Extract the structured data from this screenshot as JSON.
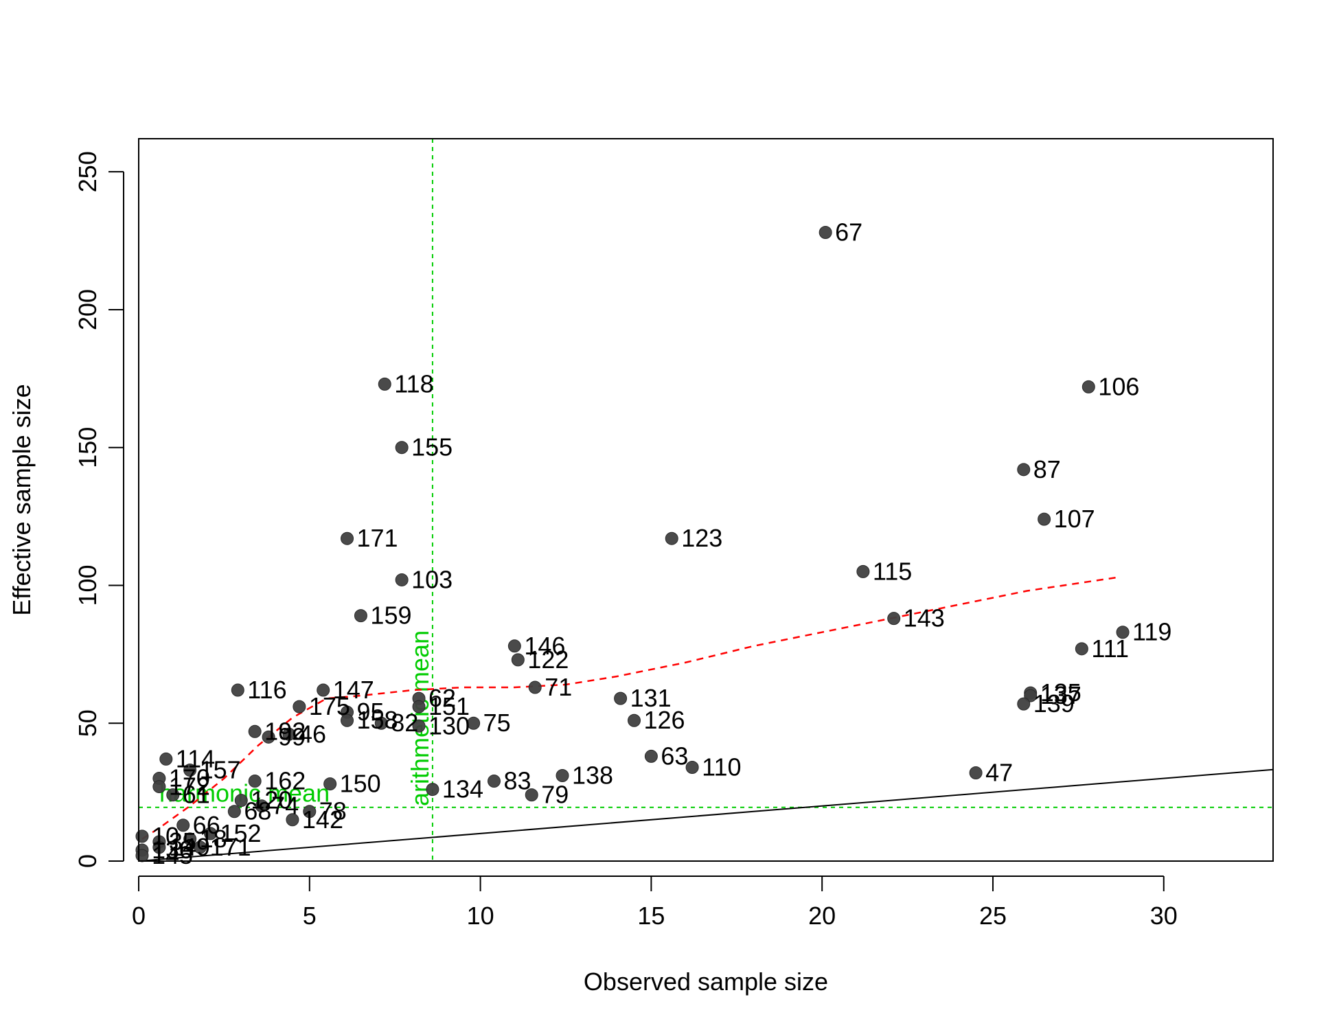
{
  "chart_data": {
    "type": "scatter",
    "xlabel": "Observed sample size",
    "ylabel": "Effective sample size",
    "xlim": [
      0,
      33.2
    ],
    "ylim": [
      0,
      262
    ],
    "xticks": [
      0,
      5,
      10,
      15,
      20,
      25,
      30
    ],
    "yticks": [
      0,
      50,
      100,
      150,
      200,
      250
    ],
    "grid": false,
    "point_color": "#404040",
    "points": [
      {
        "label": "67",
        "x": 20.1,
        "y": 228
      },
      {
        "label": "118",
        "x": 7.2,
        "y": 173
      },
      {
        "label": "106",
        "x": 27.8,
        "y": 172
      },
      {
        "label": "155",
        "x": 7.7,
        "y": 150
      },
      {
        "label": "87",
        "x": 25.9,
        "y": 142
      },
      {
        "label": "107",
        "x": 26.5,
        "y": 124
      },
      {
        "label": "171",
        "x": 6.1,
        "y": 117
      },
      {
        "label": "123",
        "x": 15.6,
        "y": 117
      },
      {
        "label": "115",
        "x": 21.2,
        "y": 105
      },
      {
        "label": "103",
        "x": 7.7,
        "y": 102
      },
      {
        "label": "159",
        "x": 6.5,
        "y": 89
      },
      {
        "label": "143",
        "x": 22.1,
        "y": 88
      },
      {
        "label": "119",
        "x": 28.8,
        "y": 83
      },
      {
        "label": "146",
        "x": 11.0,
        "y": 78
      },
      {
        "label": "111",
        "x": 27.6,
        "y": 77
      },
      {
        "label": "122",
        "x": 11.1,
        "y": 73
      },
      {
        "label": "71",
        "x": 11.6,
        "y": 63
      },
      {
        "label": "116",
        "x": 2.9,
        "y": 62
      },
      {
        "label": "147",
        "x": 5.4,
        "y": 62
      },
      {
        "label": "135",
        "x": 26.1,
        "y": 61
      },
      {
        "label": "137",
        "x": 26.1,
        "y": 60
      },
      {
        "label": "131",
        "x": 14.1,
        "y": 59
      },
      {
        "label": "62",
        "x": 8.2,
        "y": 59
      },
      {
        "label": "139",
        "x": 25.9,
        "y": 57
      },
      {
        "label": "175",
        "x": 4.7,
        "y": 56
      },
      {
        "label": "151",
        "x": 8.2,
        "y": 56
      },
      {
        "label": "95",
        "x": 6.1,
        "y": 54
      },
      {
        "label": "126",
        "x": 14.5,
        "y": 51
      },
      {
        "label": "158",
        "x": 6.1,
        "y": 51
      },
      {
        "label": "75",
        "x": 9.8,
        "y": 50
      },
      {
        "label": "82",
        "x": 7.1,
        "y": 50
      },
      {
        "label": "130",
        "x": 8.2,
        "y": 49
      },
      {
        "label": "192",
        "x": 3.4,
        "y": 47
      },
      {
        "label": "46",
        "x": 4.4,
        "y": 46
      },
      {
        "label": "99",
        "x": 3.8,
        "y": 45
      },
      {
        "label": "63",
        "x": 15.0,
        "y": 38
      },
      {
        "label": "114",
        "x": 0.8,
        "y": 37
      },
      {
        "label": "110",
        "x": 16.2,
        "y": 34
      },
      {
        "label": "157",
        "x": 1.5,
        "y": 33
      },
      {
        "label": "47",
        "x": 24.5,
        "y": 32
      },
      {
        "label": "138",
        "x": 12.4,
        "y": 31
      },
      {
        "label": "170",
        "x": 0.6,
        "y": 30
      },
      {
        "label": "162",
        "x": 3.4,
        "y": 29
      },
      {
        "label": "83",
        "x": 10.4,
        "y": 29
      },
      {
        "label": "150",
        "x": 5.6,
        "y": 28
      },
      {
        "label": "172",
        "x": 0.6,
        "y": 27
      },
      {
        "label": "134",
        "x": 8.6,
        "y": 26
      },
      {
        "label": "79",
        "x": 11.5,
        "y": 24
      },
      {
        "label": "61",
        "x": 1.0,
        "y": 24
      },
      {
        "label": "120",
        "x": 3.0,
        "y": 22
      },
      {
        "label": "74",
        "x": 3.6,
        "y": 20
      },
      {
        "label": "78",
        "x": 5.0,
        "y": 18
      },
      {
        "label": "68",
        "x": 2.8,
        "y": 18
      },
      {
        "label": "142",
        "x": 4.5,
        "y": 15
      },
      {
        "label": "66",
        "x": 1.3,
        "y": 13
      },
      {
        "label": "152",
        "x": 2.1,
        "y": 10
      },
      {
        "label": "10",
        "x": 0.1,
        "y": 9
      },
      {
        "label": "18",
        "x": 1.5,
        "y": 8
      },
      {
        "label": "35",
        "x": 0.6,
        "y": 7
      },
      {
        "label": "171",
        "x": 1.8,
        "y": 5
      },
      {
        "label": "149",
        "x": 0.6,
        "y": 5
      },
      {
        "label": "130",
        "x": 0.1,
        "y": 4
      },
      {
        "label": "145",
        "x": 0.1,
        "y": 2
      }
    ],
    "reference_lines": [
      {
        "type": "vertical",
        "x": 8.6,
        "label": "arithmetic mean",
        "color": "#00cc00",
        "style": "dashed"
      },
      {
        "type": "horizontal",
        "y": 19.5,
        "label": "harmonic mean",
        "color": "#00cc00",
        "style": "dashed"
      },
      {
        "type": "identity",
        "color": "#000000",
        "style": "solid"
      }
    ],
    "smoother": {
      "color": "#ff0000",
      "style": "dashed",
      "x": [
        0.1,
        0.6,
        1.5,
        2.5,
        3.5,
        4.5,
        5.5,
        6.5,
        8.0,
        9.5,
        11.0,
        12.5,
        14.0,
        16.0,
        18.0,
        20.0,
        22.0,
        24.0,
        26.0,
        28.7
      ],
      "y": [
        8,
        12,
        20,
        30,
        42,
        52,
        59,
        60,
        62,
        63,
        63,
        64,
        67,
        72,
        78,
        83,
        88,
        93,
        98,
        103
      ]
    }
  }
}
